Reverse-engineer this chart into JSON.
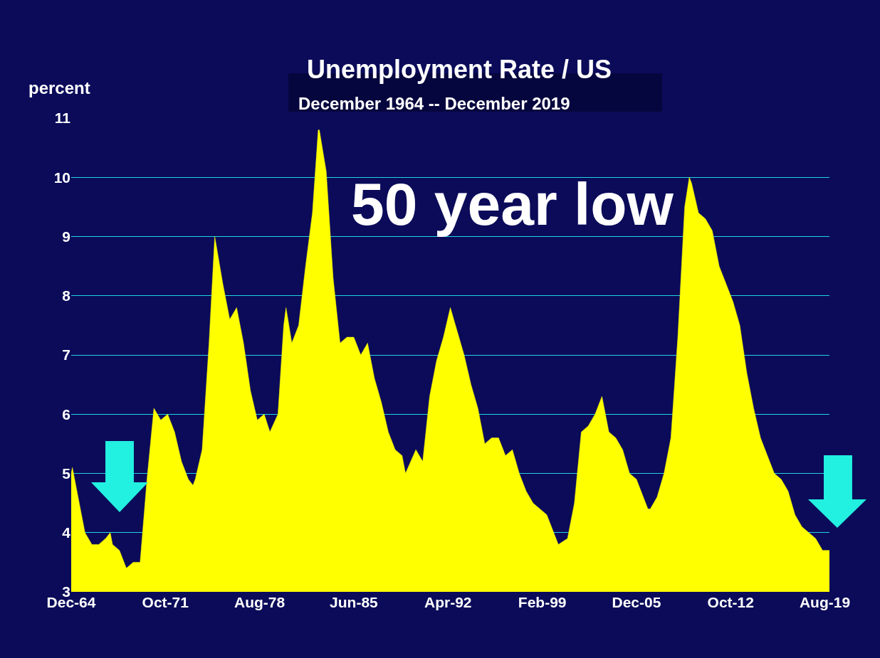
{
  "chart_data": {
    "type": "area",
    "title": "Unemployment Rate / US",
    "subtitle": "December 1964 -- December 2019",
    "ylabel": "percent",
    "annotations": [
      "50 year low"
    ],
    "x": [
      "1964-12",
      "1965-01",
      "1965-06",
      "1965-12",
      "1966-06",
      "1966-12",
      "1967-06",
      "1967-10",
      "1967-12",
      "1968-06",
      "1968-12",
      "1969-06",
      "1969-12",
      "1970-06",
      "1970-12",
      "1971-06",
      "1971-12",
      "1972-06",
      "1972-12",
      "1973-06",
      "1973-10",
      "1973-12",
      "1974-06",
      "1974-12",
      "1975-05",
      "1975-12",
      "1976-06",
      "1976-12",
      "1977-06",
      "1977-12",
      "1978-06",
      "1978-12",
      "1979-05",
      "1979-12",
      "1980-05",
      "1980-07",
      "1980-12",
      "1981-06",
      "1981-12",
      "1982-06",
      "1982-11",
      "1982-12",
      "1983-06",
      "1983-12",
      "1984-06",
      "1984-12",
      "1985-06",
      "1985-12",
      "1986-06",
      "1986-12",
      "1987-06",
      "1987-12",
      "1988-06",
      "1988-12",
      "1989-03",
      "1989-12",
      "1990-06",
      "1990-12",
      "1991-06",
      "1991-12",
      "1992-06",
      "1992-12",
      "1993-06",
      "1993-12",
      "1994-06",
      "1994-12",
      "1995-06",
      "1995-12",
      "1996-06",
      "1996-12",
      "1997-06",
      "1997-12",
      "1998-06",
      "1998-12",
      "1999-06",
      "1999-12",
      "2000-04",
      "2000-12",
      "2001-06",
      "2001-12",
      "2002-06",
      "2002-12",
      "2003-06",
      "2003-12",
      "2004-06",
      "2004-12",
      "2005-06",
      "2005-12",
      "2006-06",
      "2006-10",
      "2006-12",
      "2007-06",
      "2007-12",
      "2008-06",
      "2008-12",
      "2009-06",
      "2009-10",
      "2009-12",
      "2010-06",
      "2010-12",
      "2011-06",
      "2011-12",
      "2012-06",
      "2012-12",
      "2013-06",
      "2013-12",
      "2014-06",
      "2014-12",
      "2015-06",
      "2015-12",
      "2016-06",
      "2016-12",
      "2017-06",
      "2017-12",
      "2018-06",
      "2018-12",
      "2019-06",
      "2019-09",
      "2019-12"
    ],
    "values": [
      5.0,
      5.1,
      4.6,
      4.0,
      3.8,
      3.8,
      3.9,
      4.0,
      3.8,
      3.7,
      3.4,
      3.5,
      3.5,
      4.9,
      6.1,
      5.9,
      6.0,
      5.7,
      5.2,
      4.9,
      4.8,
      4.9,
      5.4,
      7.2,
      9.0,
      8.2,
      7.6,
      7.8,
      7.2,
      6.4,
      5.9,
      6.0,
      5.7,
      6.0,
      7.5,
      7.8,
      7.2,
      7.5,
      8.5,
      9.4,
      10.8,
      10.8,
      10.1,
      8.3,
      7.2,
      7.3,
      7.3,
      7.0,
      7.2,
      6.6,
      6.2,
      5.7,
      5.4,
      5.3,
      5.0,
      5.4,
      5.2,
      6.3,
      6.9,
      7.3,
      7.8,
      7.4,
      7.0,
      6.5,
      6.1,
      5.5,
      5.6,
      5.6,
      5.3,
      5.4,
      5.0,
      4.7,
      4.5,
      4.4,
      4.3,
      4.0,
      3.8,
      3.9,
      4.5,
      5.7,
      5.8,
      6.0,
      6.3,
      5.7,
      5.6,
      5.4,
      5.0,
      4.9,
      4.6,
      4.4,
      4.4,
      4.6,
      5.0,
      5.6,
      7.3,
      9.5,
      10.0,
      9.9,
      9.4,
      9.3,
      9.1,
      8.5,
      8.2,
      7.9,
      7.5,
      6.7,
      6.1,
      5.6,
      5.3,
      5.0,
      4.9,
      4.7,
      4.3,
      4.1,
      4.0,
      3.9,
      3.7,
      3.7,
      3.7
    ],
    "color": "#ffff00",
    "xlim": [
      "1964-12",
      "2019-12"
    ],
    "xticks": [
      {
        "value": "1964-12",
        "label": "Dec-64"
      },
      {
        "value": "1971-10",
        "label": "Oct-71"
      },
      {
        "value": "1978-08",
        "label": "Aug-78"
      },
      {
        "value": "1985-06",
        "label": "Jun-85"
      },
      {
        "value": "1992-04",
        "label": "Apr-92"
      },
      {
        "value": "1999-02",
        "label": "Feb-99"
      },
      {
        "value": "2005-12",
        "label": "Dec-05"
      },
      {
        "value": "2012-10",
        "label": "Oct-12"
      },
      {
        "value": "2019-08",
        "label": "Aug-19"
      }
    ],
    "ylim": [
      3,
      11
    ],
    "yticks": [
      3,
      4,
      5,
      6,
      7,
      8,
      9,
      10,
      11
    ],
    "grid": "y"
  }
}
